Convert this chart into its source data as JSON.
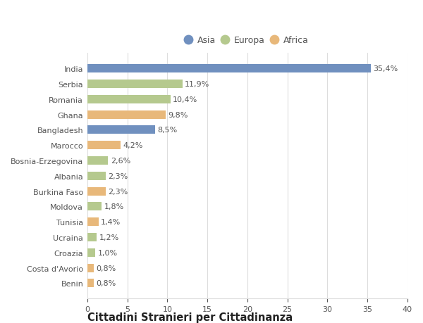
{
  "categories": [
    "India",
    "Serbia",
    "Romania",
    "Ghana",
    "Bangladesh",
    "Marocco",
    "Bosnia-Erzegovina",
    "Albania",
    "Burkina Faso",
    "Moldova",
    "Tunisia",
    "Ucraina",
    "Croazia",
    "Costa d'Avorio",
    "Benin"
  ],
  "values": [
    35.4,
    11.9,
    10.4,
    9.8,
    8.5,
    4.2,
    2.6,
    2.3,
    2.3,
    1.8,
    1.4,
    1.2,
    1.0,
    0.8,
    0.8
  ],
  "labels": [
    "35,4%",
    "11,9%",
    "10,4%",
    "9,8%",
    "8,5%",
    "4,2%",
    "2,6%",
    "2,3%",
    "2,3%",
    "1,8%",
    "1,4%",
    "1,2%",
    "1,0%",
    "0,8%",
    "0,8%"
  ],
  "continents": [
    "Asia",
    "Europa",
    "Europa",
    "Africa",
    "Asia",
    "Africa",
    "Europa",
    "Europa",
    "Africa",
    "Europa",
    "Africa",
    "Europa",
    "Europa",
    "Africa",
    "Africa"
  ],
  "colors": {
    "Asia": "#7090bf",
    "Europa": "#b5c98e",
    "Africa": "#e8b87a"
  },
  "legend_order": [
    "Asia",
    "Europa",
    "Africa"
  ],
  "xlim": [
    0,
    40
  ],
  "xticks": [
    0,
    5,
    10,
    15,
    20,
    25,
    30,
    35,
    40
  ],
  "title": "Cittadini Stranieri per Cittadinanza",
  "background_color": "#ffffff",
  "bar_height": 0.55,
  "grid_color": "#dddddd",
  "text_color": "#555555",
  "label_fontsize": 8.0,
  "tick_fontsize": 8.0,
  "title_fontsize": 10.5,
  "subtitle_fontsize": 7.2,
  "legend_fontsize": 9.0
}
